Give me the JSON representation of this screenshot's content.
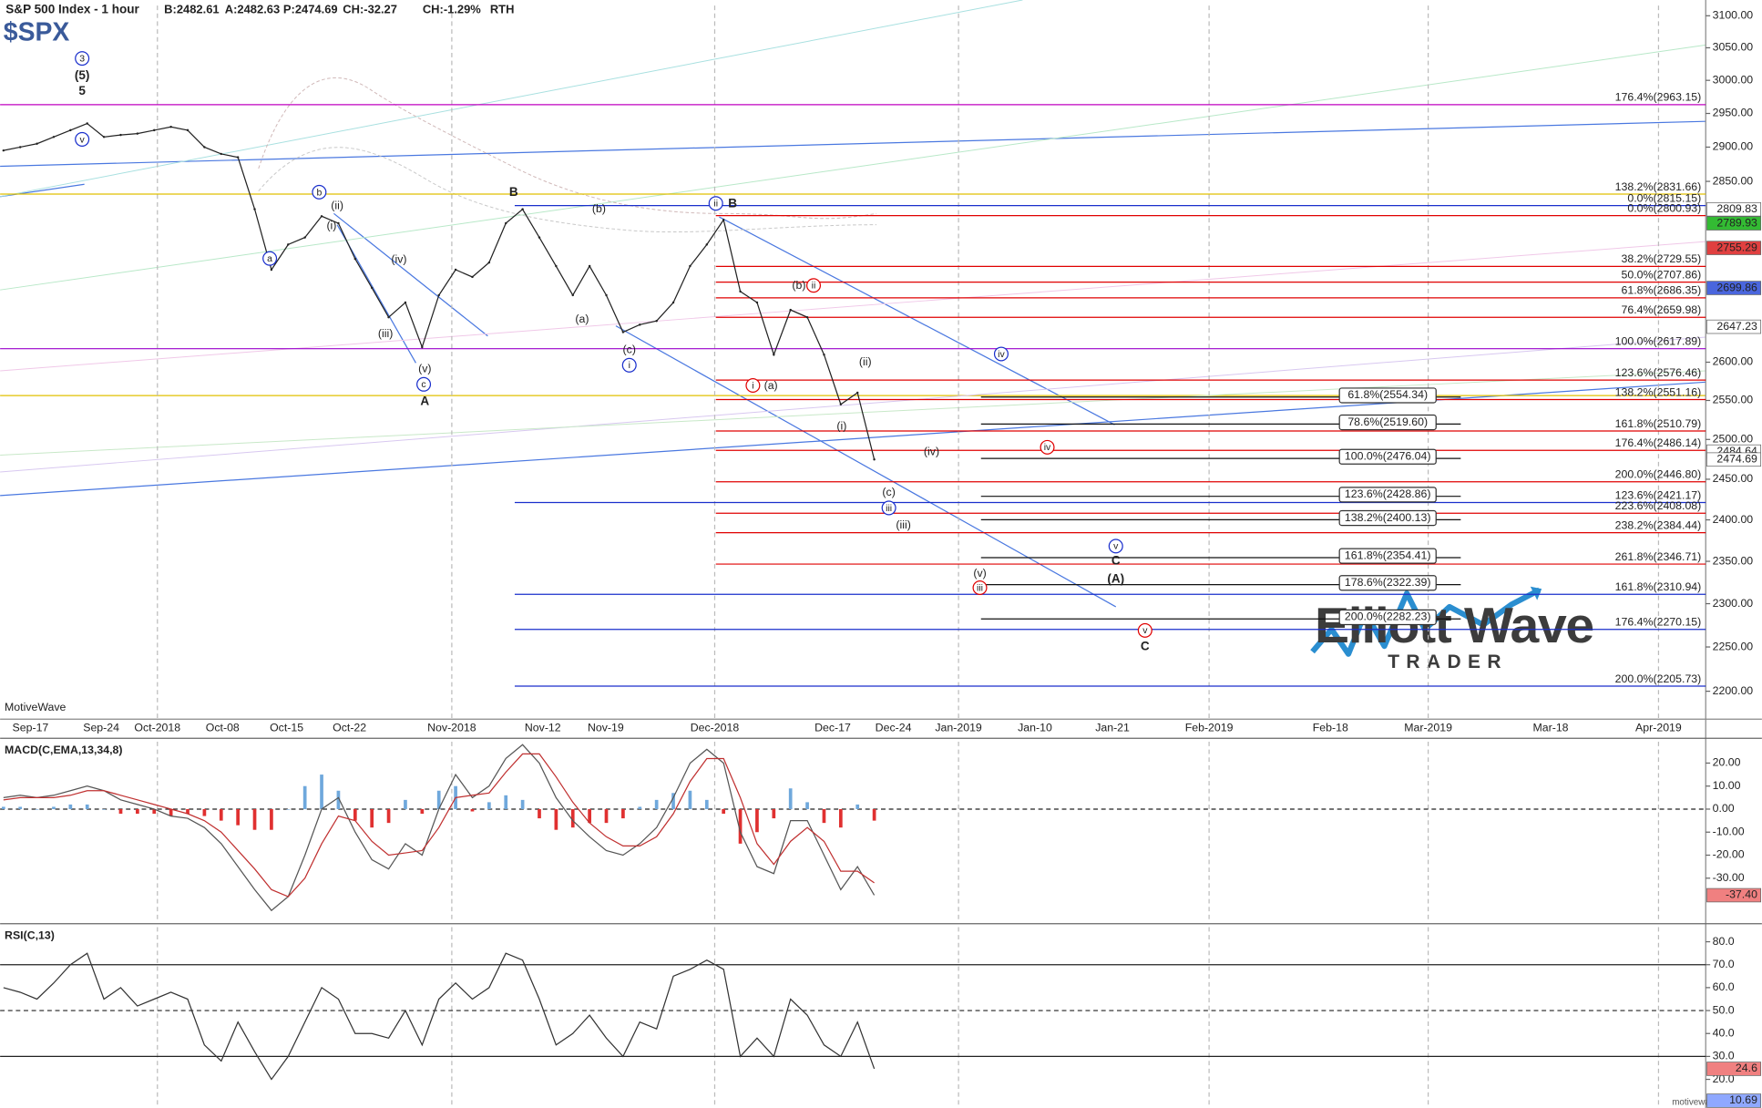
{
  "chart_data": [
    {
      "type": "line",
      "title": "S&P 500 Index - 1 hour",
      "symbol": "$SPX",
      "quote": [
        "B:2482.61",
        "A:2482.63",
        "P:2474.69",
        "CH:-32.27",
        "CH:-1.29%",
        "RTH"
      ],
      "source": "MotiveWave",
      "footer": "motivewave.com",
      "logo": [
        "Elliott Wave",
        "TRADER"
      ],
      "log_scale": true,
      "grid": true,
      "color": "#222222",
      "ylim": [
        2169,
        3116
      ],
      "yticks": [
        {
          "value": 3100,
          "label": "3100.00"
        },
        {
          "value": 3050,
          "label": "3050.00"
        },
        {
          "value": 3000,
          "label": "3000.00"
        },
        {
          "value": 2950,
          "label": "2950.00"
        },
        {
          "value": 2900,
          "label": "2900.00"
        },
        {
          "value": 2850,
          "label": "2850.00"
        },
        {
          "value": 2600,
          "label": "2600.00"
        },
        {
          "value": 2550,
          "label": "2550.00"
        },
        {
          "value": 2500,
          "label": "2500.00"
        },
        {
          "value": 2450,
          "label": "2450.00"
        },
        {
          "value": 2400,
          "label": "2400.00"
        },
        {
          "value": 2350,
          "label": "2350.00"
        },
        {
          "value": 2300,
          "label": "2300.00"
        },
        {
          "value": 2250,
          "label": "2250.00"
        },
        {
          "value": 2200,
          "label": "2200.00"
        }
      ],
      "xticks": [
        "Sep-17",
        "Sep-24",
        "Oct-2018",
        "Oct-08",
        "Oct-15",
        "Oct-22",
        "Nov-2018",
        "Nov-12",
        "Nov-19",
        "Dec-2018",
        "Dec-17",
        "Dec-24",
        "Jan-2019",
        "Jan-10",
        "Jan-21",
        "Feb-2019",
        "Feb-18",
        "Mar-2019",
        "Mar-18",
        "Apr-2019"
      ],
      "values": [
        2895,
        2900,
        2905,
        2915,
        2925,
        2935,
        2915,
        2918,
        2920,
        2925,
        2930,
        2925,
        2900,
        2890,
        2885,
        2810,
        2725,
        2760,
        2770,
        2800,
        2790,
        2740,
        2700,
        2660,
        2680,
        2620,
        2690,
        2725,
        2715,
        2735,
        2790,
        2810,
        2770,
        2730,
        2690,
        2730,
        2690,
        2640,
        2650,
        2655,
        2680,
        2730,
        2760,
        2795,
        2695,
        2680,
        2610,
        2670,
        2660,
        2610,
        2545,
        2560,
        2474.69
      ],
      "levels": [
        {
          "label": "176.4%(2963.15)",
          "value": 2963.15,
          "color": "#c000c0"
        },
        {
          "label": "138.2%(2831.66)",
          "value": 2831.66,
          "color": "#e0c000"
        },
        {
          "label": "0.0%(2815.15)",
          "value": 2815.15,
          "color": "#1a2fcc"
        },
        {
          "label": "0.0%(2800.93)",
          "value": 2800.93,
          "color": "#e00000"
        },
        {
          "label": "38.2%(2729.55)",
          "value": 2729.55,
          "color": "#e00000"
        },
        {
          "label": "50.0%(2707.86)",
          "value": 2707.86,
          "color": "#e00000"
        },
        {
          "label": "61.8%(2686.35)",
          "value": 2686.35,
          "color": "#e00000"
        },
        {
          "label": "76.4%(2659.98)",
          "value": 2659.98,
          "color": "#e00000"
        },
        {
          "label": "100.0%(2617.89)",
          "value": 2617.89,
          "color": "#9900cc"
        },
        {
          "label": "123.6%(2576.46)",
          "value": 2576.46,
          "color": "#e00000"
        },
        {
          "label": "138.2%(2551.16)",
          "value": 2551.16,
          "color": "#e00000"
        },
        {
          "label": "161.8%(2510.79)",
          "value": 2510.79,
          "color": "#e00000"
        },
        {
          "label": "176.4%(2486.14)",
          "value": 2486.14,
          "color": "#e00000"
        },
        {
          "label": "200.0%(2446.80)",
          "value": 2446.8,
          "color": "#e00000"
        },
        {
          "label": "123.6%(2421.17)",
          "value": 2421.17,
          "color": "#1a2fcc"
        },
        {
          "label": "223.6%(2408.08)",
          "value": 2408.08,
          "color": "#e00000"
        },
        {
          "label": "238.2%(2384.44)",
          "value": 2384.44,
          "color": "#e00000"
        },
        {
          "label": "261.8%(2346.71)",
          "value": 2346.71,
          "color": "#e00000"
        },
        {
          "label": "161.8%(2310.94)",
          "value": 2310.94,
          "color": "#1a2fcc"
        },
        {
          "label": "176.4%(2270.15)",
          "value": 2270.15,
          "color": "#1a2fcc"
        },
        {
          "label": "200.0%(2205.73)",
          "value": 2205.73,
          "color": "#1a2fcc"
        }
      ],
      "targets": [
        {
          "label": "61.8%(2554.34)",
          "value": 2554.34
        },
        {
          "label": "78.6%(2519.60)",
          "value": 2519.6
        },
        {
          "label": "100.0%(2476.04)",
          "value": 2476.04
        },
        {
          "label": "123.6%(2428.86)",
          "value": 2428.86
        },
        {
          "label": "138.2%(2400.13)",
          "value": 2400.13
        },
        {
          "label": "161.8%(2354.41)",
          "value": 2354.41
        },
        {
          "label": "178.6%(2322.39)",
          "value": 2322.39
        },
        {
          "label": "200.0%(2282.23)",
          "value": 2282.23
        }
      ],
      "price_markers": [
        {
          "value": 2809.83,
          "color": "#ffffff"
        },
        {
          "value": 2789.93,
          "color": "#33bb33"
        },
        {
          "value": 2755.29,
          "color": "#e04040"
        },
        {
          "value": 2699.86,
          "color": "#4a66dd"
        },
        {
          "value": 2647.23,
          "color": "#ffffff"
        },
        {
          "value": 2484.64,
          "color": "#ffffff"
        },
        {
          "value": 2474.69,
          "color": "#ffffff"
        }
      ],
      "annotations": [
        {
          "text": "3",
          "color": "#1a2fcc",
          "style": "circled"
        },
        {
          "text": "(5)",
          "color": "#1a2fcc",
          "style": "bold"
        },
        {
          "text": "5",
          "color": "#1a2fcc",
          "style": "bold"
        },
        {
          "text": "v",
          "color": "#1a2fcc",
          "style": "circled"
        },
        {
          "text": "a",
          "color": "#1a2fcc",
          "style": "circled"
        },
        {
          "text": "b",
          "color": "#1a2fcc",
          "style": "circled"
        },
        {
          "text": "(ii)",
          "color": "#1a2fcc",
          "style": "plain"
        },
        {
          "text": "(i)",
          "color": "#1a2fcc",
          "style": "plain"
        },
        {
          "text": "(iv)",
          "color": "#1a2fcc",
          "style": "plain"
        },
        {
          "text": "(iii)",
          "color": "#1a2fcc",
          "style": "plain"
        },
        {
          "text": "(v)",
          "color": "#1a2fcc",
          "style": "plain"
        },
        {
          "text": "c",
          "color": "#1a2fcc",
          "style": "circled"
        },
        {
          "text": "A",
          "color": "#1a2fcc",
          "style": "bold"
        },
        {
          "text": "B",
          "color": "#1a2fcc",
          "style": "bold"
        },
        {
          "text": "(b)",
          "color": "#1a2fcc",
          "style": "plain"
        },
        {
          "text": "(a)",
          "color": "#1a2fcc",
          "style": "plain"
        },
        {
          "text": "(c)",
          "color": "#1a2fcc",
          "style": "plain"
        },
        {
          "text": "i",
          "color": "#1a2fcc",
          "style": "circled"
        },
        {
          "text": "ii",
          "color": "#1a2fcc",
          "style": "circled"
        },
        {
          "text": "B",
          "color": "#e00000",
          "style": "bold"
        },
        {
          "text": "(b)",
          "color": "#1a2fcc",
          "style": "plain"
        },
        {
          "text": "ii",
          "color": "#e00000",
          "style": "circled"
        },
        {
          "text": "i",
          "color": "#e00000",
          "style": "circled"
        },
        {
          "text": "(a)",
          "color": "#1a2fcc",
          "style": "plain"
        },
        {
          "text": "(ii)",
          "color": "#e00000",
          "style": "plain"
        },
        {
          "text": "(i)",
          "color": "#e00000",
          "style": "plain"
        },
        {
          "text": "(iv)",
          "color": "#e00000",
          "style": "plain"
        },
        {
          "text": "iv",
          "color": "#e00000",
          "style": "circled"
        },
        {
          "text": "iv",
          "color": "#1a2fcc",
          "style": "circled"
        },
        {
          "text": "(c)",
          "color": "#1a2fcc",
          "style": "plain"
        },
        {
          "text": "iii",
          "color": "#1a2fcc",
          "style": "circled"
        },
        {
          "text": "(iii)",
          "color": "#e00000",
          "style": "plain"
        },
        {
          "text": "v",
          "color": "#1a2fcc",
          "style": "circled"
        },
        {
          "text": "C",
          "color": "#1a2fcc",
          "style": "bold"
        },
        {
          "text": "(A)",
          "color": "#1a2fcc",
          "style": "bold"
        },
        {
          "text": "(v)",
          "color": "#e00000",
          "style": "plain"
        },
        {
          "text": "iii",
          "color": "#e00000",
          "style": "circled"
        },
        {
          "text": "v",
          "color": "#e00000",
          "style": "circled"
        },
        {
          "text": "C",
          "color": "#e00000",
          "style": "bold"
        }
      ]
    },
    {
      "type": "line",
      "title": "MACD(C,EMA,13,34,8)",
      "ylim": [
        -48.8,
        29.3
      ],
      "yticks": [
        {
          "value": 20,
          "label": "20.00"
        },
        {
          "value": 10,
          "label": "10.00"
        },
        {
          "value": 0,
          "label": "0.00"
        },
        {
          "value": -10,
          "label": "-10.00"
        },
        {
          "value": -20,
          "label": "-20.00"
        },
        {
          "value": -30,
          "label": "-30.00"
        }
      ],
      "series": [
        {
          "color": "#555555",
          "values": [
            5,
            6,
            5,
            6,
            8,
            10,
            8,
            4,
            2,
            0,
            -3,
            -4,
            -8,
            -15,
            -25,
            -35,
            -44,
            -38,
            -20,
            0,
            5,
            -10,
            -22,
            -26,
            -15,
            -20,
            0,
            15,
            5,
            10,
            22,
            28,
            20,
            5,
            -5,
            -12,
            -18,
            -20,
            -15,
            -8,
            5,
            20,
            26,
            20,
            -10,
            -25,
            -28,
            -5,
            -5,
            -20,
            -35,
            -25,
            -37.4
          ]
        },
        {
          "color": "#c03030",
          "values": [
            4,
            5,
            5,
            5,
            6,
            8,
            8,
            6,
            4,
            2,
            0,
            -2,
            -5,
            -10,
            -18,
            -26,
            -35,
            -38,
            -30,
            -15,
            -3,
            -5,
            -14,
            -20,
            -19,
            -18,
            -8,
            5,
            6,
            7,
            16,
            24,
            24,
            14,
            3,
            -6,
            -12,
            -16,
            -16,
            -12,
            -2,
            12,
            22,
            22,
            5,
            -15,
            -24,
            -14,
            -8,
            -14,
            -27,
            -27,
            -32
          ]
        }
      ],
      "histogram": {
        "positive_color": "#6fa8dc",
        "negative_color": "#e03030",
        "values": [
          1,
          1,
          0,
          1,
          2,
          2,
          0,
          -2,
          -2,
          -2,
          -3,
          -2,
          -3,
          -5,
          -7,
          -9,
          -9,
          0,
          10,
          15,
          8,
          -5,
          -8,
          -6,
          4,
          -2,
          8,
          10,
          -1,
          3,
          6,
          4,
          -4,
          -9,
          -8,
          -6,
          -6,
          -4,
          1,
          4,
          7,
          8,
          4,
          -2,
          -15,
          -10,
          -4,
          9,
          3,
          -6,
          -8,
          2,
          -5
        ]
      },
      "zero_line": 0,
      "markers": [
        {
          "value": -37.4,
          "label": "-37.40",
          "color": "#f08080"
        }
      ]
    },
    {
      "type": "line",
      "title": "RSI(C,13)",
      "ylim": [
        8,
        86.4
      ],
      "yticks": [
        {
          "value": 80,
          "label": "80.0"
        },
        {
          "value": 70,
          "label": "70.0"
        },
        {
          "value": 60,
          "label": "60.0"
        },
        {
          "value": 50,
          "label": "50.0"
        },
        {
          "value": 40,
          "label": "40.0"
        },
        {
          "value": 30,
          "label": "30.0"
        },
        {
          "value": 20,
          "label": "20.0"
        }
      ],
      "color": "#333333",
      "values": [
        60,
        58,
        55,
        62,
        70,
        75,
        55,
        60,
        52,
        55,
        58,
        55,
        35,
        28,
        45,
        32,
        20,
        30,
        45,
        60,
        55,
        40,
        40,
        38,
        50,
        35,
        55,
        62,
        55,
        60,
        75,
        72,
        55,
        35,
        40,
        48,
        38,
        30,
        45,
        42,
        65,
        68,
        72,
        68,
        30,
        38,
        30,
        55,
        48,
        35,
        30,
        45,
        24.6
      ],
      "levels": [
        70,
        50,
        30
      ],
      "markers": [
        {
          "value": 24.6,
          "color": "#f08080"
        },
        {
          "value": 10.69,
          "color": "#8fa8ff"
        }
      ]
    }
  ]
}
